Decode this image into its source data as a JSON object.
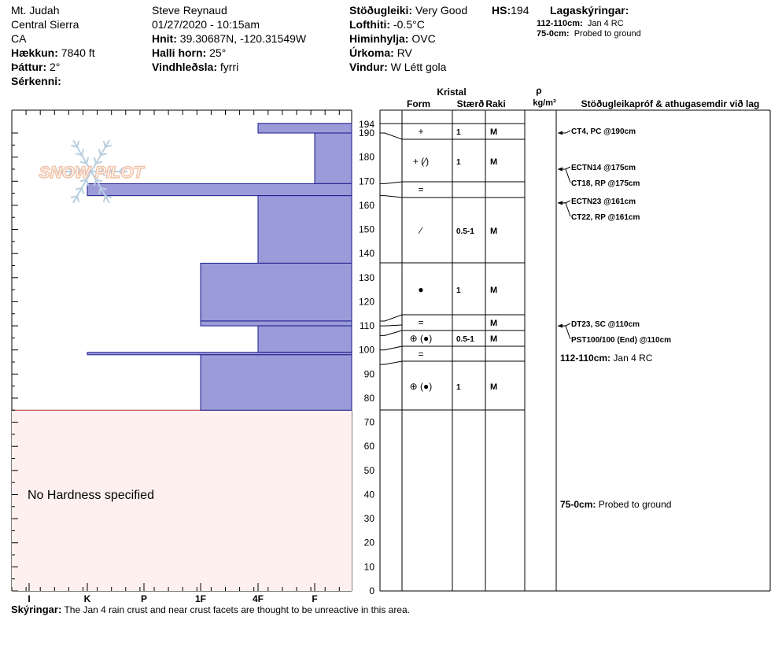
{
  "header": {
    "col1": [
      "Mt. Judah",
      "Central Sierra",
      "CA"
    ],
    "elevation_label": "Hækkun:",
    "elevation": "7840 ft",
    "aspect_label": "Þáttur:",
    "aspect": "2°",
    "features_label": "Sérkenni:",
    "features": "",
    "observer": "Steve Reynaud",
    "datetime": "01/27/2020 - 10:15am",
    "coords_label": "Hnit:",
    "coords": "39.30687N, -120.31549W",
    "slope_label": "Halli horn:",
    "slope": "25°",
    "wind_loading_label": "Vindhleðsla:",
    "wind_loading": "fyrri",
    "stability_label": "Stöðugleiki:",
    "stability": "Very Good",
    "air_temp_label": "Lofthiti:",
    "air_temp": "-0.5°C",
    "sky_label": "Himinhylja:",
    "sky": "OVC",
    "precip_label": "Úrkoma:",
    "precip": "RV",
    "wind_label": "Vindur:",
    "wind": "W Létt gola",
    "hs_label": "HS:",
    "hs": "194",
    "layer_notes_label": "Lagaskýringar:",
    "layer_notes": [
      {
        "range": "112-110cm:",
        "text": "Jan 4 RC"
      },
      {
        "range": "75-0cm:",
        "text": "Probed to ground"
      }
    ]
  },
  "logo_text": "SNOW PILOT",
  "no_hardness_text": "No Hardness specified",
  "columns": {
    "crystal": "Kristal",
    "form": "Form",
    "size": "Stærð",
    "moisture": "Raki",
    "rho": "ρ",
    "density_unit": "kg/m³",
    "tests": "Stöðugleikapróf & athugasemdir við lag"
  },
  "chart_data": {
    "type": "bar",
    "title": "",
    "hardness_scale": [
      "I",
      "K",
      "P",
      "1F",
      "4F",
      "F"
    ],
    "ylim": [
      0,
      194
    ],
    "y_ticks": [
      0,
      10,
      20,
      30,
      40,
      50,
      60,
      70,
      80,
      90,
      100,
      110,
      120,
      130,
      140,
      150,
      160,
      170,
      180,
      190,
      194
    ],
    "hardness_layers": [
      {
        "top": 194,
        "bottom": 190,
        "hardness": "4F"
      },
      {
        "top": 190,
        "bottom": 169,
        "hardness": "F"
      },
      {
        "top": 169,
        "bottom": 164,
        "hardness": "K"
      },
      {
        "top": 164,
        "bottom": 136,
        "hardness": "4F"
      },
      {
        "top": 136,
        "bottom": 112,
        "hardness": "1F"
      },
      {
        "top": 112,
        "bottom": 110,
        "hardness": "1F"
      },
      {
        "top": 110,
        "bottom": 99,
        "hardness": "4F"
      },
      {
        "top": 99,
        "bottom": 98,
        "hardness": "K"
      },
      {
        "top": 98,
        "bottom": 75,
        "hardness": "1F"
      }
    ],
    "no_hardness_range": [
      0,
      75
    ],
    "grain_layers": [
      {
        "top": 194,
        "bottom": 190,
        "form": "",
        "size": "",
        "moisture": ""
      },
      {
        "top": 190,
        "bottom": 177,
        "form": "+",
        "size": "1",
        "moisture": "M"
      },
      {
        "top": 177,
        "bottom": 169,
        "form": "+ (⁄)",
        "size": "1",
        "moisture": "M"
      },
      {
        "top": 169,
        "bottom": 164,
        "form": "=",
        "size": "",
        "moisture": ""
      },
      {
        "top": 164,
        "bottom": 136,
        "form": "⁄",
        "size": "0.5-1",
        "moisture": "M"
      },
      {
        "top": 136,
        "bottom": 112,
        "form": "●",
        "size": "1",
        "moisture": "M"
      },
      {
        "top": 112,
        "bottom": 106,
        "form": "=",
        "size": "",
        "moisture": "M"
      },
      {
        "top": 106,
        "bottom": 100,
        "form": "⊕ (●)",
        "size": "0.5-1",
        "moisture": "M"
      },
      {
        "top": 100,
        "bottom": 94,
        "form": "=",
        "size": "",
        "moisture": ""
      },
      {
        "top": 94,
        "bottom": 75,
        "form": "⊕ (●)",
        "size": "1",
        "moisture": "M"
      }
    ],
    "layer_boundaries": [
      194,
      190,
      177,
      169,
      164,
      136,
      112,
      110,
      106,
      100,
      94,
      75
    ],
    "tests": [
      {
        "height": 190,
        "label": "CT4, PC @190cm"
      },
      {
        "height": 175,
        "label": "ECTN14 @175cm"
      },
      {
        "height": 175,
        "label": "CT18, RP @175cm"
      },
      {
        "height": 161,
        "label": "ECTN23 @161cm"
      },
      {
        "height": 161,
        "label": "CT22, RP @161cm"
      },
      {
        "height": 110,
        "label": "DT23, SC @110cm"
      },
      {
        "height": 110,
        "label": "PST100/100 (End) @110cm"
      }
    ],
    "comments": [
      {
        "height": 110,
        "range": "112-110cm:",
        "text": "Jan 4 RC"
      },
      {
        "height": 38,
        "range": "75-0cm:",
        "text": "Probed to ground"
      }
    ]
  },
  "footer": {
    "label": "Skýringar:",
    "text": "The Jan 4 rain crust and near crust facets are thought to be unreactive in this area."
  },
  "colors": {
    "hardness_fill": "#9b9bd9",
    "hardness_stroke": "#1a1a8c",
    "no_hardness_fill": "#fff0f0",
    "no_hardness_border": "#b03030"
  }
}
